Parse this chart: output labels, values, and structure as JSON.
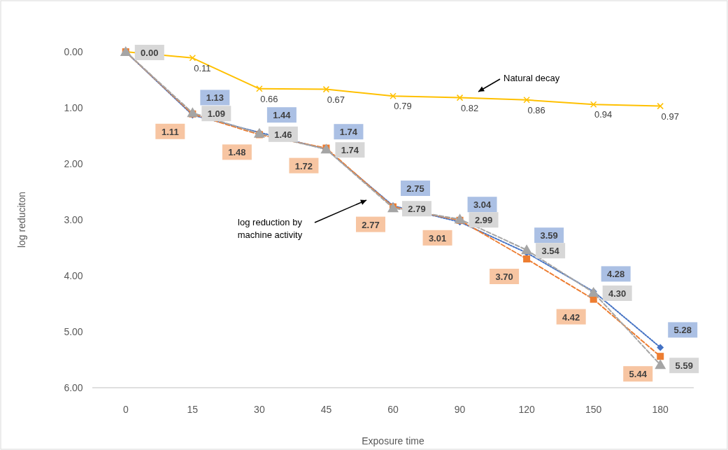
{
  "chart_data": {
    "type": "line",
    "xlabel": "Exposure time",
    "ylabel": "log reduciton",
    "categories": [
      "0",
      "15",
      "30",
      "45",
      "60",
      "90",
      "120",
      "150",
      "180"
    ],
    "ylim": [
      6,
      0
    ],
    "yticks": [
      {
        "value": 0,
        "label": "0.00"
      },
      {
        "value": 1,
        "label": "1.00"
      },
      {
        "value": 2,
        "label": "2.00"
      },
      {
        "value": 3,
        "label": "3.00"
      },
      {
        "value": 4,
        "label": "4.00"
      },
      {
        "value": 5,
        "label": "5.00"
      },
      {
        "value": 6,
        "label": "6.00"
      }
    ],
    "grid": false,
    "series": [
      {
        "color": "#ffc000",
        "marker": "cross",
        "line_style": "solid",
        "values": [
          0,
          0.11,
          0.66,
          0.67,
          0.79,
          0.82,
          0.86,
          0.94,
          0.97
        ],
        "value_labels": [
          null,
          "0.11",
          "0.66",
          "0.67",
          "0.79",
          "0.82",
          "0.86",
          "0.94",
          "0.97"
        ]
      },
      {
        "color": "#4472c4",
        "marker": "diamond",
        "line_style": "dotted",
        "values": [
          0,
          1.13,
          1.44,
          1.74,
          2.75,
          3.04,
          3.59,
          4.28,
          5.28
        ],
        "value_labels": [
          null,
          "1.13",
          "1.44",
          "1.74",
          "2.75",
          "3.04",
          "3.59",
          "4.28",
          "5.28"
        ]
      },
      {
        "color": "#ed7d31",
        "marker": "square",
        "line_style": "dashed",
        "values": [
          0,
          1.11,
          1.48,
          1.72,
          2.77,
          3.01,
          3.7,
          4.42,
          5.44
        ],
        "value_labels": [
          null,
          "1.11",
          "1.48",
          "1.72",
          "2.77",
          "3.01",
          "3.70",
          "4.42",
          "5.44"
        ]
      },
      {
        "color": "#a5a5a5",
        "marker": "triangle",
        "line_style": "dashed",
        "values": [
          0,
          1.09,
          1.46,
          1.74,
          2.79,
          2.99,
          3.54,
          4.3,
          5.59
        ],
        "value_labels": [
          "0.00",
          "1.09",
          "1.46",
          "1.74",
          "2.79",
          "2.99",
          "3.54",
          "4.30",
          "5.59"
        ]
      }
    ],
    "annotations": [
      "Natural decay",
      "log reduction by machine activity"
    ]
  }
}
